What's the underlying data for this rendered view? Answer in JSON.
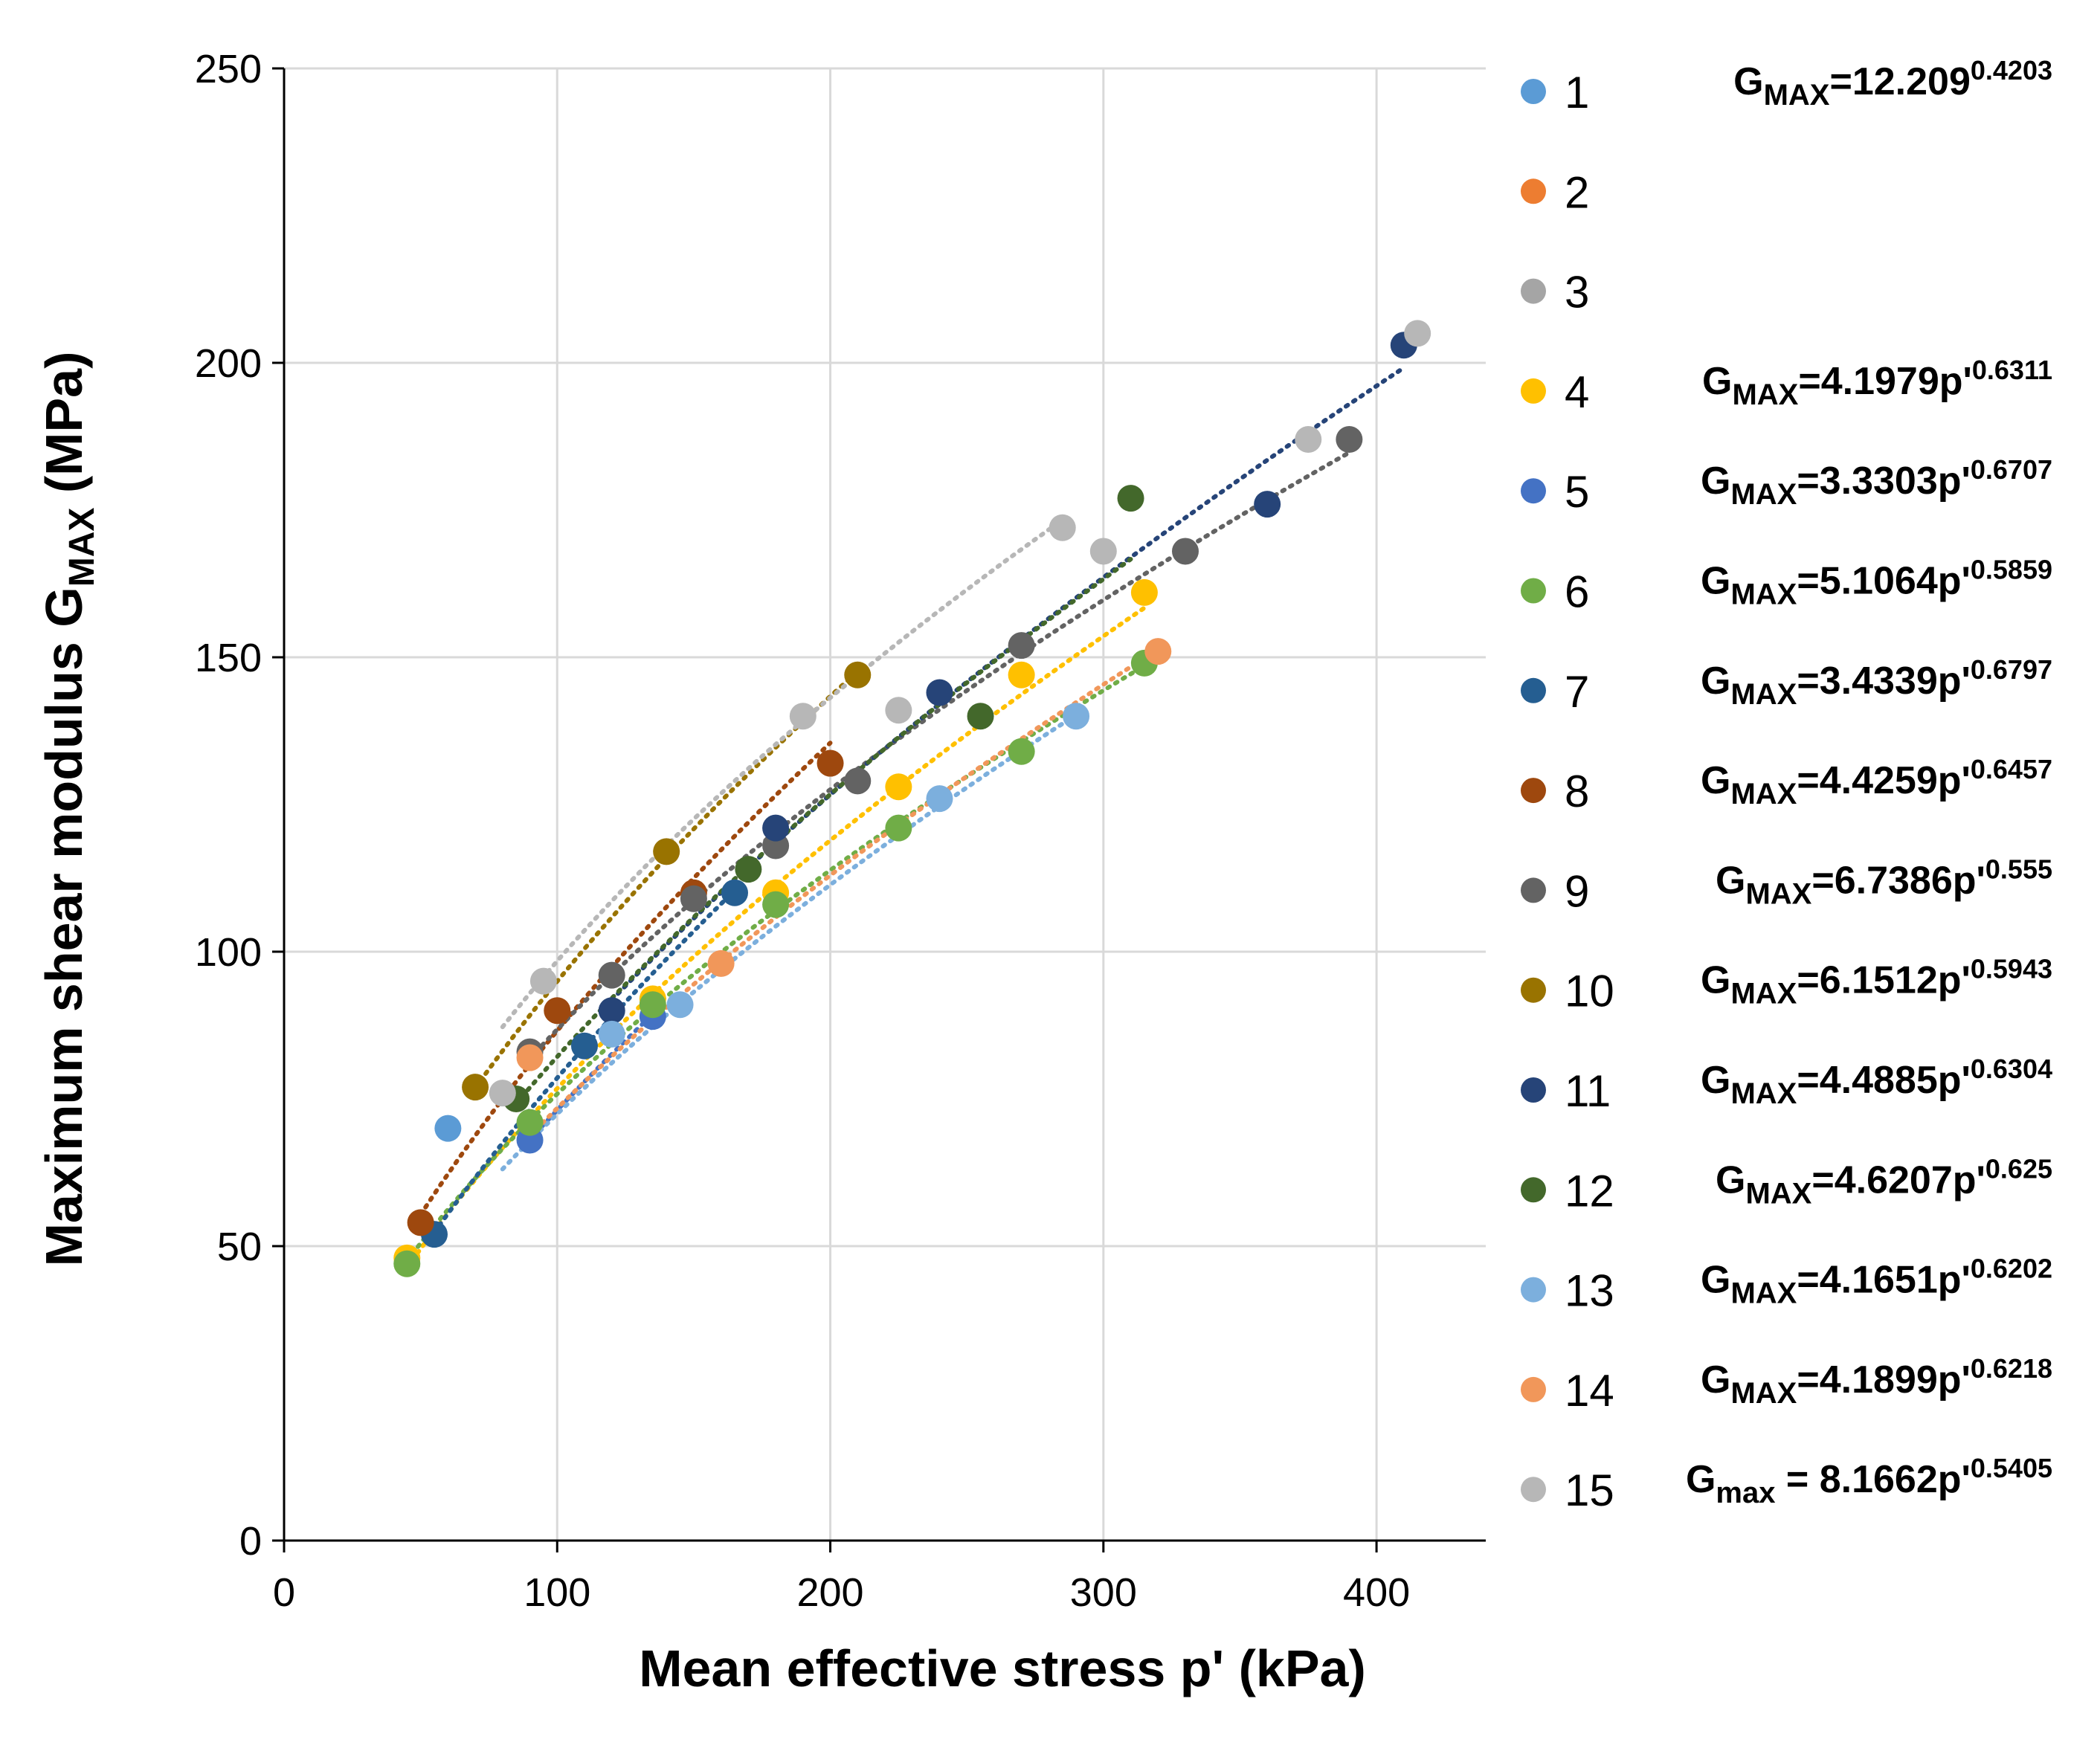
{
  "chart_data": {
    "type": "scatter",
    "xlabel": "Mean effective stress p' (kPa)",
    "ylabel_main": "Maximum shear modulus G",
    "ylabel_sub": "MAX",
    "ylabel_tail": " (MPa)",
    "xlim": [
      0,
      440
    ],
    "ylim": [
      0,
      250
    ],
    "xticks": [
      0,
      100,
      200,
      300,
      400
    ],
    "yticks": [
      0,
      50,
      100,
      150,
      200,
      250
    ],
    "grid": true,
    "legend_position": "right",
    "series": [
      {
        "name": "1",
        "color": "#5B9BD5",
        "eq": {
          "g": "G",
          "sub": "MAX",
          "body": "=12.209",
          "exp": "0.4203"
        },
        "points": [
          [
            60,
            70
          ]
        ],
        "trend": null
      },
      {
        "name": "2",
        "color": "#ED7D31",
        "eq": null,
        "points": [],
        "trend": null
      },
      {
        "name": "3",
        "color": "#A5A5A5",
        "eq": null,
        "points": [],
        "trend": null
      },
      {
        "name": "4",
        "color": "#FFC000",
        "eq": {
          "g": "G",
          "sub": "MAX",
          "body": "=4.1979p'",
          "exp": "0.6311"
        },
        "points": [
          [
            45,
            48
          ],
          [
            135,
            92
          ],
          [
            180,
            110
          ],
          [
            225,
            128
          ],
          [
            270,
            147
          ],
          [
            315,
            161
          ]
        ],
        "trend": {
          "a": 4.1979,
          "b": 0.6311,
          "xmin": 45,
          "xmax": 315
        }
      },
      {
        "name": "5",
        "color": "#4472C4",
        "eq": {
          "g": "G",
          "sub": "MAX",
          "body": "=3.3303p'",
          "exp": "0.6707"
        },
        "points": [
          [
            90,
            68
          ],
          [
            135,
            89
          ]
        ],
        "trend": {
          "a": 3.3303,
          "b": 0.6707,
          "xmin": 90,
          "xmax": 135
        }
      },
      {
        "name": "6",
        "color": "#70AD47",
        "eq": {
          "g": "G",
          "sub": "MAX",
          "body": "=5.1064p'",
          "exp": "0.5859"
        },
        "points": [
          [
            45,
            47
          ],
          [
            90,
            71
          ],
          [
            135,
            91
          ],
          [
            180,
            108
          ],
          [
            225,
            121
          ],
          [
            270,
            134
          ],
          [
            315,
            149
          ]
        ],
        "trend": {
          "a": 5.1064,
          "b": 0.5859,
          "xmin": 45,
          "xmax": 315
        }
      },
      {
        "name": "7",
        "color": "#255E91",
        "eq": {
          "g": "G",
          "sub": "MAX",
          "body": "=3.4339p'",
          "exp": "0.6797"
        },
        "points": [
          [
            55,
            52
          ],
          [
            110,
            84
          ],
          [
            165,
            110
          ]
        ],
        "trend": {
          "a": 3.4339,
          "b": 0.6797,
          "xmin": 55,
          "xmax": 165
        }
      },
      {
        "name": "8",
        "color": "#9E480E",
        "eq": {
          "g": "G",
          "sub": "MAX",
          "body": "=4.4259p'",
          "exp": "0.6457"
        },
        "points": [
          [
            50,
            54
          ],
          [
            100,
            90
          ],
          [
            150,
            110
          ],
          [
            200,
            132
          ]
        ],
        "trend": {
          "a": 4.4259,
          "b": 0.6457,
          "xmin": 50,
          "xmax": 200
        }
      },
      {
        "name": "9",
        "color": "#636363",
        "eq": {
          "g": "G",
          "sub": "MAX",
          "body": "=6.7386p'",
          "exp": "0.555"
        },
        "points": [
          [
            90,
            83
          ],
          [
            120,
            96
          ],
          [
            150,
            109
          ],
          [
            180,
            118
          ],
          [
            210,
            129
          ],
          [
            270,
            152
          ],
          [
            330,
            168
          ],
          [
            390,
            187
          ]
        ],
        "trend": {
          "a": 6.7386,
          "b": 0.555,
          "xmin": 90,
          "xmax": 390
        }
      },
      {
        "name": "10",
        "color": "#997300",
        "eq": {
          "g": "G",
          "sub": "MAX",
          "body": "=6.1512p'",
          "exp": "0.5943"
        },
        "points": [
          [
            70,
            77
          ],
          [
            140,
            117
          ],
          [
            210,
            147
          ]
        ],
        "trend": {
          "a": 6.1512,
          "b": 0.5943,
          "xmin": 70,
          "xmax": 210
        }
      },
      {
        "name": "11",
        "color": "#264478",
        "eq": {
          "g": "G",
          "sub": "MAX",
          "body": "=4.4885p'",
          "exp": "0.6304"
        },
        "points": [
          [
            120,
            90
          ],
          [
            180,
            121
          ],
          [
            240,
            144
          ],
          [
            360,
            176
          ],
          [
            410,
            203
          ]
        ],
        "trend": {
          "a": 4.4885,
          "b": 0.6304,
          "xmin": 120,
          "xmax": 410
        }
      },
      {
        "name": "12",
        "color": "#43682B",
        "eq": {
          "g": "G",
          "sub": "MAX",
          "body": "=4.6207p'",
          "exp": "0.625"
        },
        "points": [
          [
            85,
            75
          ],
          [
            170,
            114
          ],
          [
            255,
            140
          ],
          [
            310,
            177
          ]
        ],
        "trend": {
          "a": 4.6207,
          "b": 0.625,
          "xmin": 85,
          "xmax": 310
        }
      },
      {
        "name": "13",
        "color": "#7CAFDD",
        "eq": {
          "g": "G",
          "sub": "MAX",
          "body": "=4.1651p'",
          "exp": "0.6202"
        },
        "points": [
          [
            120,
            86
          ],
          [
            145,
            91
          ],
          [
            240,
            126
          ],
          [
            290,
            140
          ]
        ],
        "trend": {
          "a": 4.1651,
          "b": 0.6202,
          "xmin": 80,
          "xmax": 290
        }
      },
      {
        "name": "14",
        "color": "#F1975A",
        "eq": {
          "g": "G",
          "sub": "MAX",
          "body": "=4.1899p'",
          "exp": "0.6218"
        },
        "points": [
          [
            90,
            82
          ],
          [
            160,
            98
          ],
          [
            320,
            151
          ]
        ],
        "trend": {
          "a": 4.1899,
          "b": 0.6218,
          "xmin": 90,
          "xmax": 320
        }
      },
      {
        "name": "15",
        "color": "#B7B7B7",
        "eq": {
          "g": "G",
          "sub": "max",
          "body": " = 8.1662p'",
          "exp": "0.5405"
        },
        "points": [
          [
            80,
            76
          ],
          [
            95,
            95
          ],
          [
            190,
            140
          ],
          [
            225,
            141
          ],
          [
            285,
            172
          ],
          [
            300,
            168
          ],
          [
            375,
            187
          ],
          [
            415,
            205
          ]
        ],
        "trend": {
          "a": 8.1662,
          "b": 0.5405,
          "xmin": 80,
          "xmax": 285
        }
      }
    ]
  }
}
